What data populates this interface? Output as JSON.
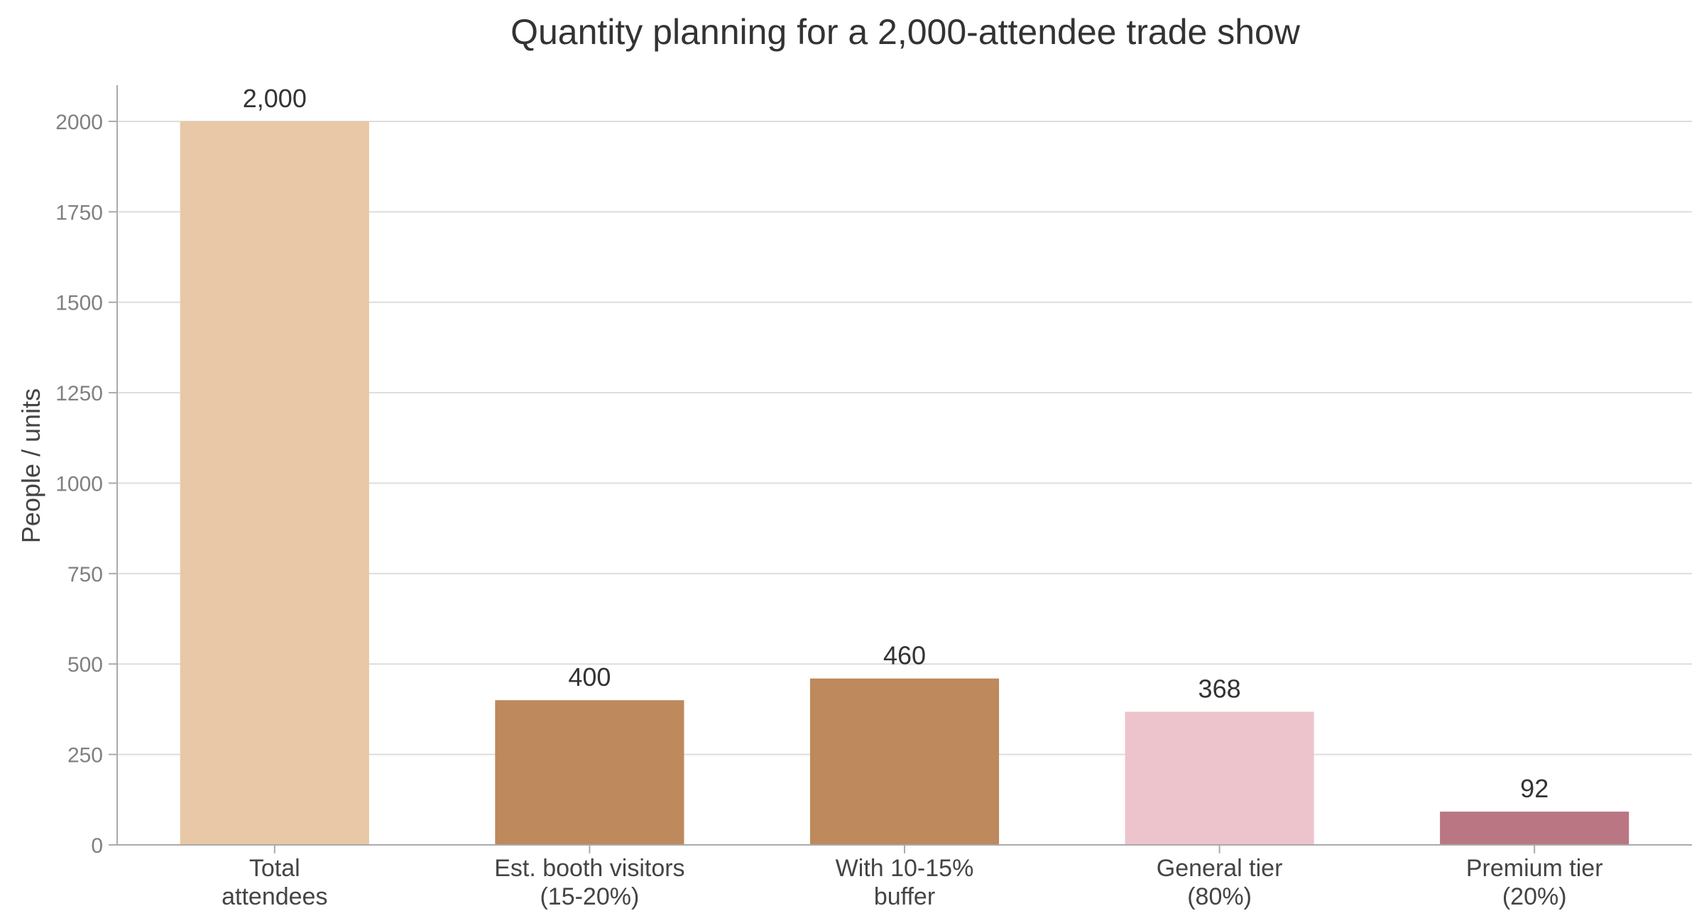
{
  "chart_data": {
    "type": "bar",
    "title": "Quantity planning for a 2,000-attendee trade show",
    "xlabel": "",
    "ylabel": "People / units",
    "categories": [
      [
        "Total",
        "attendees"
      ],
      [
        "Est. booth visitors",
        "(15-20%)"
      ],
      [
        "With 10-15%",
        "buffer"
      ],
      [
        "General tier",
        "(80%)"
      ],
      [
        "Premium tier",
        "(20%)"
      ]
    ],
    "values": [
      2000,
      400,
      460,
      368,
      92
    ],
    "data_labels": [
      "2,000",
      "400",
      "460",
      "368",
      "92"
    ],
    "colors": [
      "#e8c8a6",
      "#be895c",
      "#be895c",
      "#edc3cc",
      "#ba7682"
    ],
    "ylim": [
      0,
      2100
    ],
    "yticks": [
      0,
      250,
      500,
      750,
      1000,
      1250,
      1500,
      1750,
      2000
    ],
    "grid": true,
    "legend": "none"
  }
}
